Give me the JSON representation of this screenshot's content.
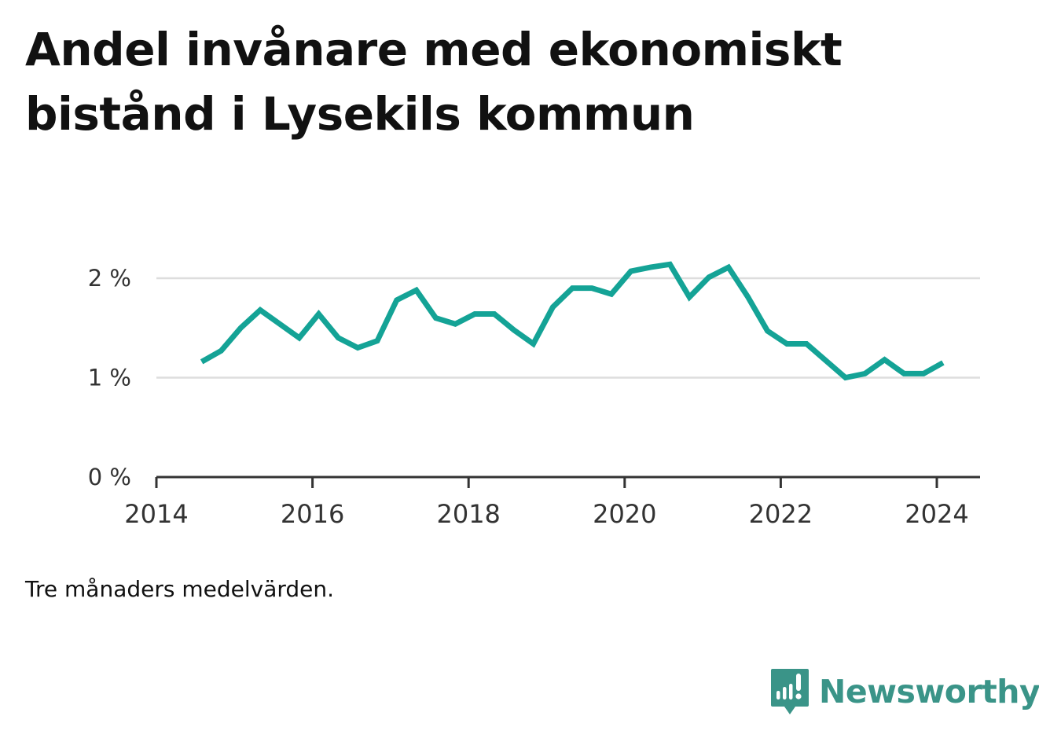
{
  "title_line1": "Andel invånare med ekonomiskt",
  "title_line2": "bistånd i Lysekils kommun",
  "footnote": "Tre månaders medelvärden.",
  "brand": {
    "name": "Newsworthy",
    "icon": "newsworthy-logo-icon",
    "color": "#3a9488"
  },
  "chart_data": {
    "type": "line",
    "line_color": "#14a396",
    "x_ticks": [
      "2014",
      "2016",
      "2018",
      "2020",
      "2022",
      "2024"
    ],
    "y_ticks": [
      "0 %",
      "1 %",
      "2 %"
    ],
    "ylim": [
      0,
      2.3
    ],
    "xlim": [
      2014,
      2024.6
    ],
    "grid": true,
    "x": [
      2014.58,
      2014.83,
      2015.08,
      2015.33,
      2015.58,
      2015.83,
      2016.08,
      2016.33,
      2016.58,
      2016.83,
      2017.08,
      2017.33,
      2017.58,
      2017.83,
      2018.08,
      2018.33,
      2018.58,
      2018.83,
      2019.08,
      2019.33,
      2019.58,
      2019.83,
      2020.08,
      2020.33,
      2020.58,
      2020.83,
      2021.08,
      2021.33,
      2021.58,
      2021.83,
      2022.08,
      2022.33,
      2022.58,
      2022.83,
      2023.08,
      2023.33,
      2023.58,
      2023.83,
      2024.08
    ],
    "y": [
      1.16,
      1.27,
      1.5,
      1.68,
      1.54,
      1.4,
      1.64,
      1.4,
      1.3,
      1.37,
      1.78,
      1.88,
      1.6,
      1.54,
      1.64,
      1.64,
      1.48,
      1.34,
      1.71,
      1.9,
      1.9,
      1.84,
      2.07,
      2.11,
      2.14,
      1.81,
      2.01,
      2.11,
      1.81,
      1.47,
      1.34,
      1.34,
      1.17,
      1.0,
      1.04,
      1.18,
      1.04,
      1.04,
      1.15
    ]
  }
}
